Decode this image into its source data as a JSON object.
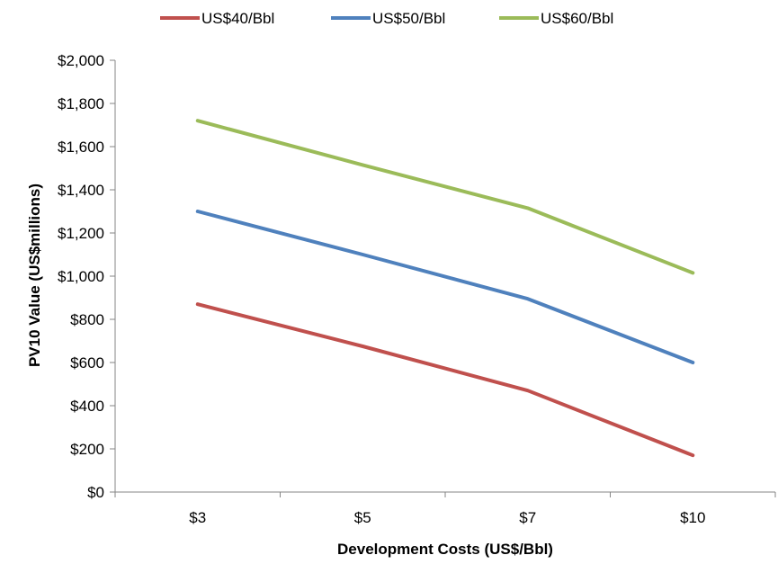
{
  "chart_data": {
    "type": "line",
    "title": "",
    "xlabel": "Development Costs (US$/Bbl)",
    "ylabel": "PV10 Value (US$millions)",
    "categories": [
      "$3",
      "$5",
      "$7",
      "$10"
    ],
    "ylim": [
      0,
      2000
    ],
    "yticks": [
      0,
      200,
      400,
      600,
      800,
      1000,
      1200,
      1400,
      1600,
      1800,
      2000
    ],
    "ytick_labels": [
      "$0",
      "$200",
      "$400",
      "$600",
      "$800",
      "$1,000",
      "$1,200",
      "$1,400",
      "$1,600",
      "$1,800",
      "$2,000"
    ],
    "grid": false,
    "legend_position": "top",
    "series": [
      {
        "name": "US$40/Bbl",
        "color": "#C0504D",
        "values": [
          870,
          675,
          470,
          170
        ]
      },
      {
        "name": "US$50/Bbl",
        "color": "#4F81BD",
        "values": [
          1300,
          1100,
          895,
          600
        ]
      },
      {
        "name": "US$60/Bbl",
        "color": "#9BBB59",
        "values": [
          1720,
          1515,
          1315,
          1015
        ]
      }
    ]
  }
}
